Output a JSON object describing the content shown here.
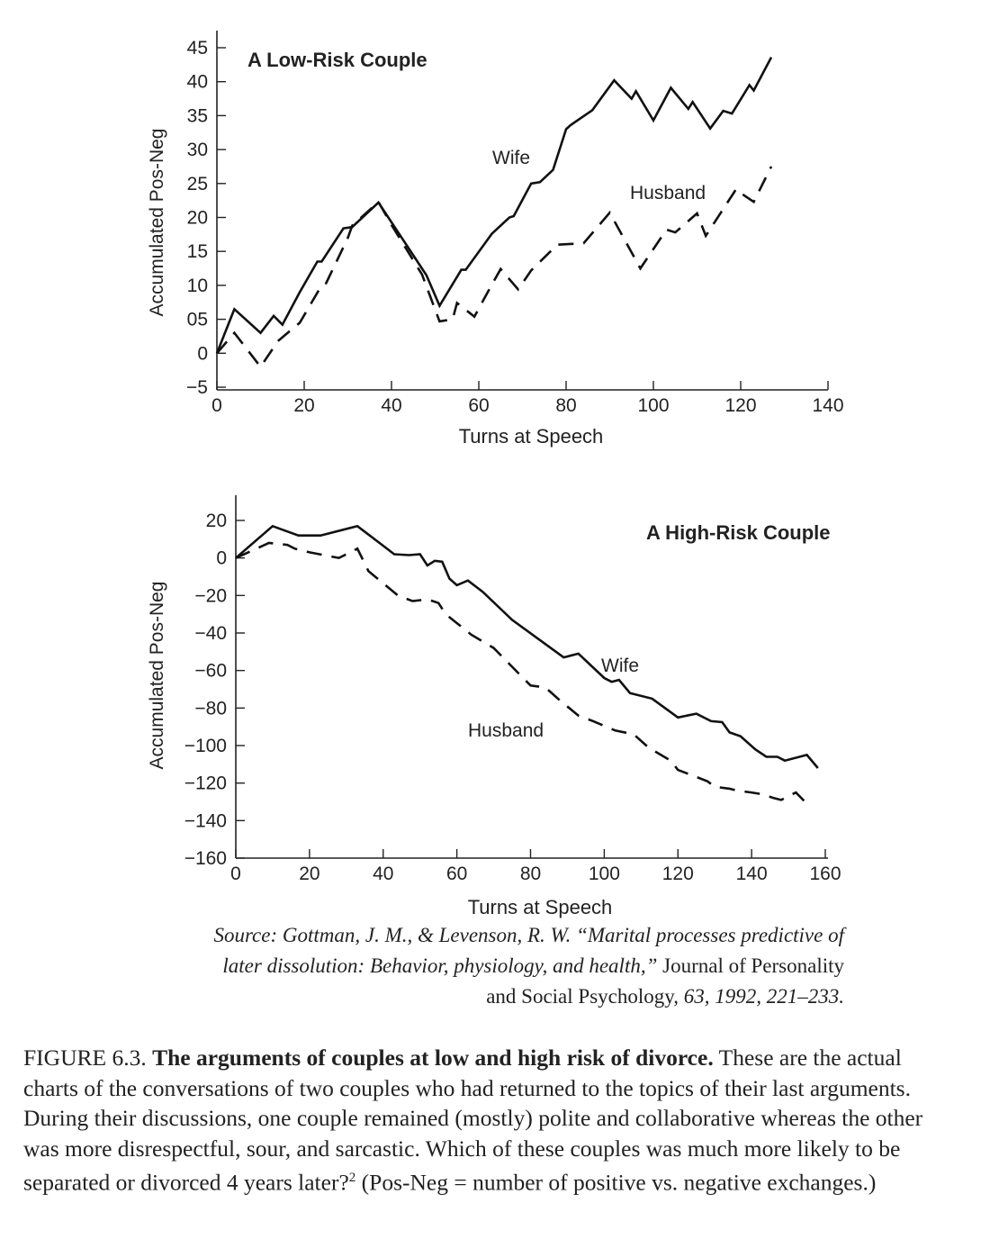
{
  "chart_data": [
    {
      "type": "line",
      "title": "A Low-Risk Couple",
      "xlabel": "Turns at Speech",
      "ylabel": "Accumulated Pos-Neg",
      "xlim": [
        0,
        140
      ],
      "ylim": [
        -5,
        45
      ],
      "x_ticks": [
        "0",
        "20",
        "40",
        "60",
        "80",
        "100",
        "120",
        "140"
      ],
      "y_ticks": [
        "45",
        "40",
        "35",
        "30",
        "25",
        "20",
        "15",
        "10",
        "05",
        "0",
        "−5"
      ],
      "series": [
        {
          "name": "Wife",
          "style": "solid",
          "points": [
            [
              0,
              0
            ],
            [
              4,
              6.5
            ],
            [
              10,
              3
            ],
            [
              13,
              5.5
            ],
            [
              15,
              4.2
            ],
            [
              19,
              9
            ],
            [
              23,
              13.5
            ],
            [
              24,
              13.5
            ],
            [
              29,
              18.4
            ],
            [
              31,
              18.6
            ],
            [
              37,
              22.2
            ],
            [
              48,
              11.5
            ],
            [
              51,
              7
            ],
            [
              56,
              12.3
            ],
            [
              57,
              12.3
            ],
            [
              63,
              17.6
            ],
            [
              67,
              20
            ],
            [
              68,
              20.2
            ],
            [
              72,
              25
            ],
            [
              74,
              25.2
            ],
            [
              77,
              27
            ],
            [
              80,
              33
            ],
            [
              81,
              33.6
            ],
            [
              86,
              35.8
            ],
            [
              91,
              40.2
            ],
            [
              95,
              37.5
            ],
            [
              96,
              38.6
            ],
            [
              100,
              34.3
            ],
            [
              104,
              39.1
            ],
            [
              108,
              36
            ],
            [
              109,
              37
            ],
            [
              113,
              33.1
            ],
            [
              116,
              35.7
            ],
            [
              118,
              35.3
            ],
            [
              122,
              39.5
            ],
            [
              123,
              38.7
            ],
            [
              127,
              43.6
            ]
          ]
        },
        {
          "name": "Husband",
          "style": "dashed",
          "points": [
            [
              0,
              0
            ],
            [
              4,
              3
            ],
            [
              10,
              -2
            ],
            [
              14,
              1.8
            ],
            [
              19,
              4.5
            ],
            [
              24,
              10
            ],
            [
              25,
              10.3
            ],
            [
              30,
              17
            ],
            [
              31,
              18.8
            ],
            [
              37,
              22.3
            ],
            [
              40,
              18.9
            ],
            [
              47,
              11.6
            ],
            [
              51,
              4.7
            ],
            [
              54,
              5
            ],
            [
              55,
              7.4
            ],
            [
              59,
              5.4
            ],
            [
              63,
              10.1
            ],
            [
              65,
              12.4
            ],
            [
              69,
              9.4
            ],
            [
              72,
              12.2
            ],
            [
              78,
              16
            ],
            [
              84,
              16.2
            ],
            [
              90,
              20.7
            ],
            [
              97,
              12.5
            ],
            [
              103,
              18.2
            ],
            [
              105,
              17.8
            ],
            [
              110,
              20.6
            ],
            [
              112,
              17.3
            ],
            [
              119,
              24.2
            ],
            [
              120,
              23.6
            ],
            [
              123,
              22.3
            ],
            [
              127,
              27.5
            ]
          ]
        }
      ]
    },
    {
      "type": "line",
      "title": "A High-Risk Couple",
      "xlabel": "Turns at Speech",
      "ylabel": "Accumulated Pos-Neg",
      "xlim": [
        0,
        160
      ],
      "ylim": [
        -160,
        20
      ],
      "x_ticks": [
        "0",
        "20",
        "40",
        "60",
        "80",
        "100",
        "120",
        "140",
        "160"
      ],
      "y_ticks": [
        "20",
        "0",
        "−20",
        "−40",
        "−60",
        "−80",
        "−100",
        "−120",
        "−140",
        "−160"
      ],
      "series": [
        {
          "name": "Wife",
          "style": "solid",
          "points": [
            [
              0,
              0
            ],
            [
              10,
              17
            ],
            [
              17,
              12
            ],
            [
              23,
              12
            ],
            [
              33,
              17
            ],
            [
              40,
              6.5
            ],
            [
              43,
              2
            ],
            [
              47,
              1.5
            ],
            [
              50,
              2
            ],
            [
              52,
              -4
            ],
            [
              54,
              -1.5
            ],
            [
              56,
              -2
            ],
            [
              58,
              -11
            ],
            [
              60,
              -14.5
            ],
            [
              63,
              -12
            ],
            [
              67,
              -18
            ],
            [
              75,
              -33
            ],
            [
              89,
              -53
            ],
            [
              93,
              -51
            ],
            [
              100,
              -64
            ],
            [
              102,
              -66
            ],
            [
              104,
              -65
            ],
            [
              107,
              -72
            ],
            [
              113,
              -75
            ],
            [
              120,
              -85
            ],
            [
              125,
              -83
            ],
            [
              129,
              -87
            ],
            [
              132,
              -87.5
            ],
            [
              134,
              -93
            ],
            [
              137,
              -95
            ],
            [
              141,
              -102
            ],
            [
              144,
              -106
            ],
            [
              147,
              -106
            ],
            [
              149,
              -108
            ],
            [
              155,
              -105
            ],
            [
              158,
              -112
            ]
          ]
        },
        {
          "name": "Husband",
          "style": "dashed",
          "points": [
            [
              0,
              0
            ],
            [
              9,
              8
            ],
            [
              14,
              7
            ],
            [
              16,
              5
            ],
            [
              20,
              3
            ],
            [
              28,
              0
            ],
            [
              33,
              5
            ],
            [
              36,
              -7
            ],
            [
              44,
              -20
            ],
            [
              48,
              -23
            ],
            [
              52,
              -22
            ],
            [
              55,
              -24
            ],
            [
              57,
              -30
            ],
            [
              64,
              -41
            ],
            [
              70,
              -48
            ],
            [
              75,
              -58
            ],
            [
              80,
              -68
            ],
            [
              84,
              -69
            ],
            [
              88,
              -76
            ],
            [
              93,
              -84
            ],
            [
              97,
              -87
            ],
            [
              103,
              -92
            ],
            [
              108,
              -94
            ],
            [
              112,
              -101
            ],
            [
              118,
              -108
            ],
            [
              120,
              -113
            ],
            [
              124,
              -116
            ],
            [
              128,
              -119
            ],
            [
              130,
              -122
            ],
            [
              134,
              -123
            ],
            [
              136,
              -124
            ],
            [
              140,
              -125
            ],
            [
              143,
              -126
            ],
            [
              146,
              -128
            ],
            [
              148,
              -129
            ],
            [
              152,
              -125
            ],
            [
              156,
              -133
            ]
          ]
        }
      ]
    }
  ],
  "source": {
    "line1": "Source: Gottman, J. M., & Levenson, R. W. “Marital processes predictive of",
    "line2_italic": "later dissolution: Behavior, physiology, and health,”",
    "line2_journal": "Journal of Personality",
    "line3_journal": "and Social Psychology,",
    "line3_italic": "63, 1992, 221–233."
  },
  "caption": {
    "label": "FIGURE 6.3.",
    "title": "The arguments of couples at low and high risk of divorce.",
    "body": "These are the actual charts of the conversations of two couples who had returned to the topics of their last arguments. During their discussions, one couple remained (mostly) polite and collaborative whereas the other was more disrespectful, sour, and sarcastic. Which of these couples was much more likely to be separated or divorced 4 years later?",
    "footnote": "2",
    "tail": "(Pos-Neg = number of positive vs. negative exchanges.)"
  }
}
